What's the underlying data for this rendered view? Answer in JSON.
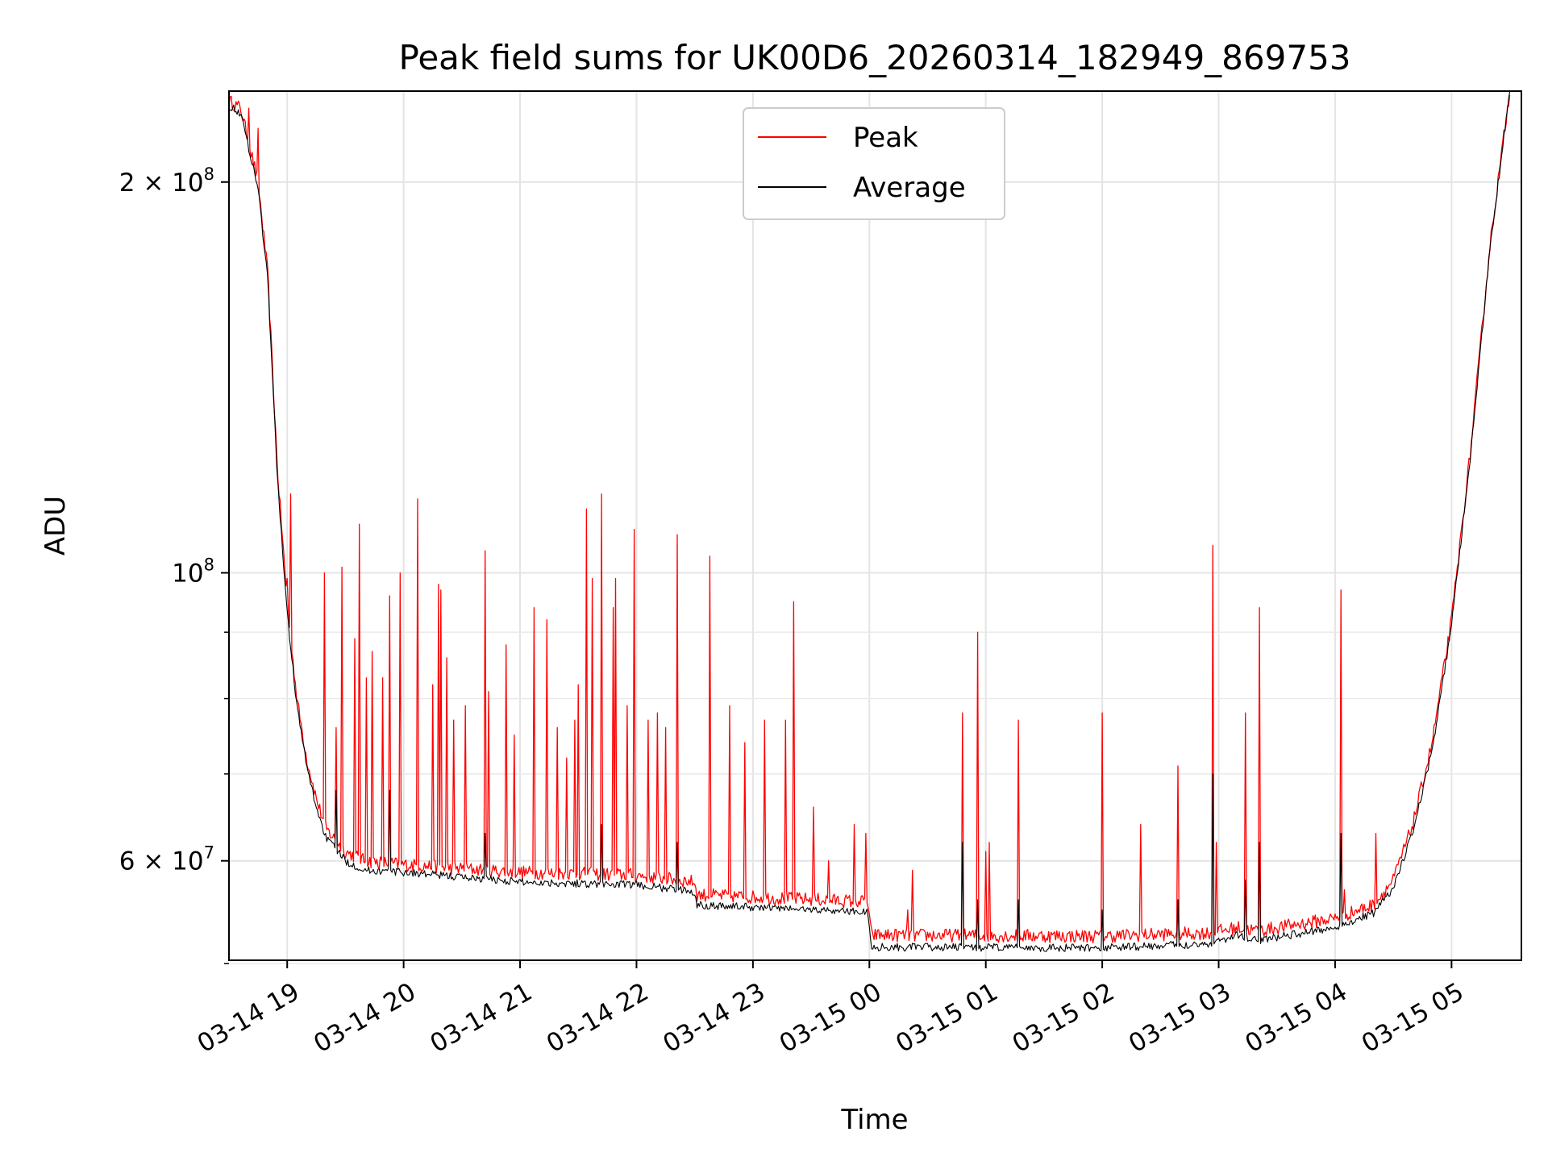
{
  "chart_data": {
    "type": "line",
    "title": "Peak field sums for UK00D6_20260314_182949_869753",
    "xlabel": "Time",
    "ylabel": "ADU",
    "yscale": "log",
    "grid": true,
    "legend_position": "top-center",
    "xlim": [
      "2026-03-14 18:30",
      "2026-03-15 05:36"
    ],
    "ylim": [
      50300000,
      235000000
    ],
    "x_ticks": [
      "03-14 19",
      "03-14 20",
      "03-14 21",
      "03-14 22",
      "03-14 23",
      "03-15 00",
      "03-15 01",
      "03-15 02",
      "03-15 03",
      "03-15 04",
      "03-15 05"
    ],
    "y_major_ticks": [
      {
        "value": 60000000,
        "label": "6 × 10",
        "exp": "7"
      },
      {
        "value": 100000000,
        "label": "10",
        "exp": "8"
      },
      {
        "value": 200000000,
        "label": "2 × 10",
        "exp": "8"
      }
    ],
    "y_minor_ticks": [
      50000000,
      70000000,
      80000000,
      90000000
    ],
    "series": [
      {
        "name": "Peak",
        "color": "#ff0000",
        "baseline": [
          [
            "2026-03-14 18:30",
            231000000
          ],
          [
            "2026-03-14 18:36",
            228000000
          ],
          [
            "2026-03-14 18:45",
            200000000
          ],
          [
            "2026-03-14 18:50",
            170000000
          ],
          [
            "2026-03-14 18:55",
            120000000
          ],
          [
            "2026-03-14 19:00",
            95000000
          ],
          [
            "2026-03-14 19:05",
            80000000
          ],
          [
            "2026-03-14 19:10",
            72000000
          ],
          [
            "2026-03-14 19:15",
            67000000
          ],
          [
            "2026-03-14 19:20",
            63500000
          ],
          [
            "2026-03-14 19:30",
            61000000
          ],
          [
            "2026-03-14 19:40",
            60000000
          ],
          [
            "2026-03-14 20:00",
            59600000
          ],
          [
            "2026-03-14 21:00",
            58800000
          ],
          [
            "2026-03-14 22:00",
            58500000
          ],
          [
            "2026-03-14 22:30",
            57800000
          ],
          [
            "2026-03-14 22:31",
            56500000
          ],
          [
            "2026-03-14 23:59",
            55800000
          ],
          [
            "2026-03-15 00:01",
            52600000
          ],
          [
            "2026-03-15 02:00",
            52500000
          ],
          [
            "2026-03-15 02:55",
            52800000
          ],
          [
            "2026-03-15 03:10",
            53300000
          ],
          [
            "2026-03-15 03:20",
            53000000
          ],
          [
            "2026-03-15 04:00",
            54200000
          ],
          [
            "2026-03-15 04:20",
            55500000
          ],
          [
            "2026-03-15 04:30",
            58000000
          ],
          [
            "2026-03-15 04:40",
            64000000
          ],
          [
            "2026-03-15 04:50",
            74000000
          ],
          [
            "2026-03-15 05:00",
            92000000
          ],
          [
            "2026-03-15 05:10",
            125000000
          ],
          [
            "2026-03-15 05:20",
            180000000
          ],
          [
            "2026-03-15 05:30",
            235000000
          ]
        ],
        "spikes": [
          [
            "2026-03-14 18:40",
            228000000
          ],
          [
            "2026-03-14 18:45",
            220000000
          ],
          [
            "2026-03-14 19:00",
            99000000
          ],
          [
            "2026-03-14 19:02",
            115000000
          ],
          [
            "2026-03-14 19:19",
            100000000
          ],
          [
            "2026-03-14 19:25",
            76000000
          ],
          [
            "2026-03-14 19:28",
            101000000
          ],
          [
            "2026-03-14 19:35",
            89000000
          ],
          [
            "2026-03-14 19:37",
            109000000
          ],
          [
            "2026-03-14 19:41",
            83000000
          ],
          [
            "2026-03-14 19:44",
            87000000
          ],
          [
            "2026-03-14 19:49",
            83000000
          ],
          [
            "2026-03-14 19:53",
            96000000
          ],
          [
            "2026-03-14 19:58",
            100000000
          ],
          [
            "2026-03-14 20:07",
            114000000
          ],
          [
            "2026-03-14 20:15",
            82000000
          ],
          [
            "2026-03-14 20:18",
            98000000
          ],
          [
            "2026-03-14 20:19",
            97000000
          ],
          [
            "2026-03-14 20:22",
            86000000
          ],
          [
            "2026-03-14 20:26",
            77000000
          ],
          [
            "2026-03-14 20:32",
            79000000
          ],
          [
            "2026-03-14 20:42",
            104000000
          ],
          [
            "2026-03-14 20:44",
            81000000
          ],
          [
            "2026-03-14 20:53",
            88000000
          ],
          [
            "2026-03-14 20:57",
            75000000
          ],
          [
            "2026-03-14 21:07",
            94000000
          ],
          [
            "2026-03-14 21:14",
            92000000
          ],
          [
            "2026-03-14 21:19",
            76000000
          ],
          [
            "2026-03-14 21:24",
            72000000
          ],
          [
            "2026-03-14 21:28",
            77000000
          ],
          [
            "2026-03-14 21:30",
            82000000
          ],
          [
            "2026-03-14 21:34",
            112000000
          ],
          [
            "2026-03-14 21:37",
            99000000
          ],
          [
            "2026-03-14 21:42",
            115000000
          ],
          [
            "2026-03-14 21:48",
            94000000
          ],
          [
            "2026-03-14 21:49",
            99000000
          ],
          [
            "2026-03-14 21:55",
            79000000
          ],
          [
            "2026-03-14 21:59",
            108000000
          ],
          [
            "2026-03-14 22:06",
            77000000
          ],
          [
            "2026-03-14 22:11",
            78000000
          ],
          [
            "2026-03-14 22:15",
            76000000
          ],
          [
            "2026-03-14 22:21",
            107000000
          ],
          [
            "2026-03-14 22:38",
            103000000
          ],
          [
            "2026-03-14 22:48",
            79000000
          ],
          [
            "2026-03-14 22:56",
            74000000
          ],
          [
            "2026-03-14 23:06",
            77000000
          ],
          [
            "2026-03-14 23:17",
            77000000
          ],
          [
            "2026-03-14 23:21",
            95000000
          ],
          [
            "2026-03-14 23:31",
            66000000
          ],
          [
            "2026-03-14 23:39",
            60000000
          ],
          [
            "2026-03-14 23:52",
            64000000
          ],
          [
            "2026-03-14 23:58",
            63000000
          ],
          [
            "2026-03-15 00:20",
            55000000
          ],
          [
            "2026-03-15 00:22",
            59000000
          ],
          [
            "2026-03-15 00:48",
            78000000
          ],
          [
            "2026-03-15 00:56",
            90000000
          ],
          [
            "2026-03-15 01:00",
            61000000
          ],
          [
            "2026-03-15 01:02",
            62000000
          ],
          [
            "2026-03-15 01:17",
            77000000
          ],
          [
            "2026-03-15 02:00",
            78000000
          ],
          [
            "2026-03-15 02:20",
            64000000
          ],
          [
            "2026-03-15 02:39",
            71000000
          ],
          [
            "2026-03-15 02:57",
            105000000
          ],
          [
            "2026-03-15 02:59",
            62000000
          ],
          [
            "2026-03-15 03:14",
            78000000
          ],
          [
            "2026-03-15 03:21",
            94000000
          ],
          [
            "2026-03-15 04:03",
            97000000
          ],
          [
            "2026-03-15 04:05",
            57000000
          ],
          [
            "2026-03-15 04:21",
            63000000
          ]
        ]
      },
      {
        "name": "Average",
        "color": "#000000",
        "baseline": [
          [
            "2026-03-14 18:30",
            229000000
          ],
          [
            "2026-03-14 18:36",
            226000000
          ],
          [
            "2026-03-14 18:45",
            198000000
          ],
          [
            "2026-03-14 18:50",
            168000000
          ],
          [
            "2026-03-14 18:55",
            118000000
          ],
          [
            "2026-03-14 19:00",
            93000000
          ],
          [
            "2026-03-14 19:05",
            79000000
          ],
          [
            "2026-03-14 19:10",
            71000000
          ],
          [
            "2026-03-14 19:15",
            66000000
          ],
          [
            "2026-03-14 19:20",
            62500000
          ],
          [
            "2026-03-14 19:30",
            60000000
          ],
          [
            "2026-03-14 19:40",
            59000000
          ],
          [
            "2026-03-14 20:00",
            58800000
          ],
          [
            "2026-03-14 21:00",
            57800000
          ],
          [
            "2026-03-14 22:00",
            57500000
          ],
          [
            "2026-03-14 22:30",
            56800000
          ],
          [
            "2026-03-14 22:31",
            55500000
          ],
          [
            "2026-03-14 23:59",
            54800000
          ],
          [
            "2026-03-15 00:01",
            51500000
          ],
          [
            "2026-03-15 02:00",
            51400000
          ],
          [
            "2026-03-15 02:55",
            51800000
          ],
          [
            "2026-03-15 03:10",
            52600000
          ],
          [
            "2026-03-15 03:20",
            52100000
          ],
          [
            "2026-03-15 04:00",
            53300000
          ],
          [
            "2026-03-15 04:20",
            54700000
          ],
          [
            "2026-03-15 04:30",
            57200000
          ],
          [
            "2026-03-15 04:40",
            63000000
          ],
          [
            "2026-03-15 04:50",
            73000000
          ],
          [
            "2026-03-15 05:00",
            91000000
          ],
          [
            "2026-03-15 05:10",
            124000000
          ],
          [
            "2026-03-15 05:20",
            179000000
          ],
          [
            "2026-03-15 05:30",
            235000000
          ]
        ],
        "spikes": [
          [
            "2026-03-14 19:25",
            68000000
          ],
          [
            "2026-03-14 19:53",
            68000000
          ],
          [
            "2026-03-14 20:42",
            63000000
          ],
          [
            "2026-03-14 21:42",
            64000000
          ],
          [
            "2026-03-14 22:21",
            62000000
          ],
          [
            "2026-03-15 00:48",
            62000000
          ],
          [
            "2026-03-15 00:56",
            56000000
          ],
          [
            "2026-03-15 01:17",
            56000000
          ],
          [
            "2026-03-15 02:00",
            55000000
          ],
          [
            "2026-03-15 02:39",
            56000000
          ],
          [
            "2026-03-15 02:57",
            70000000
          ],
          [
            "2026-03-15 03:14",
            58000000
          ],
          [
            "2026-03-15 03:21",
            62000000
          ],
          [
            "2026-03-15 04:03",
            63000000
          ]
        ]
      }
    ]
  }
}
